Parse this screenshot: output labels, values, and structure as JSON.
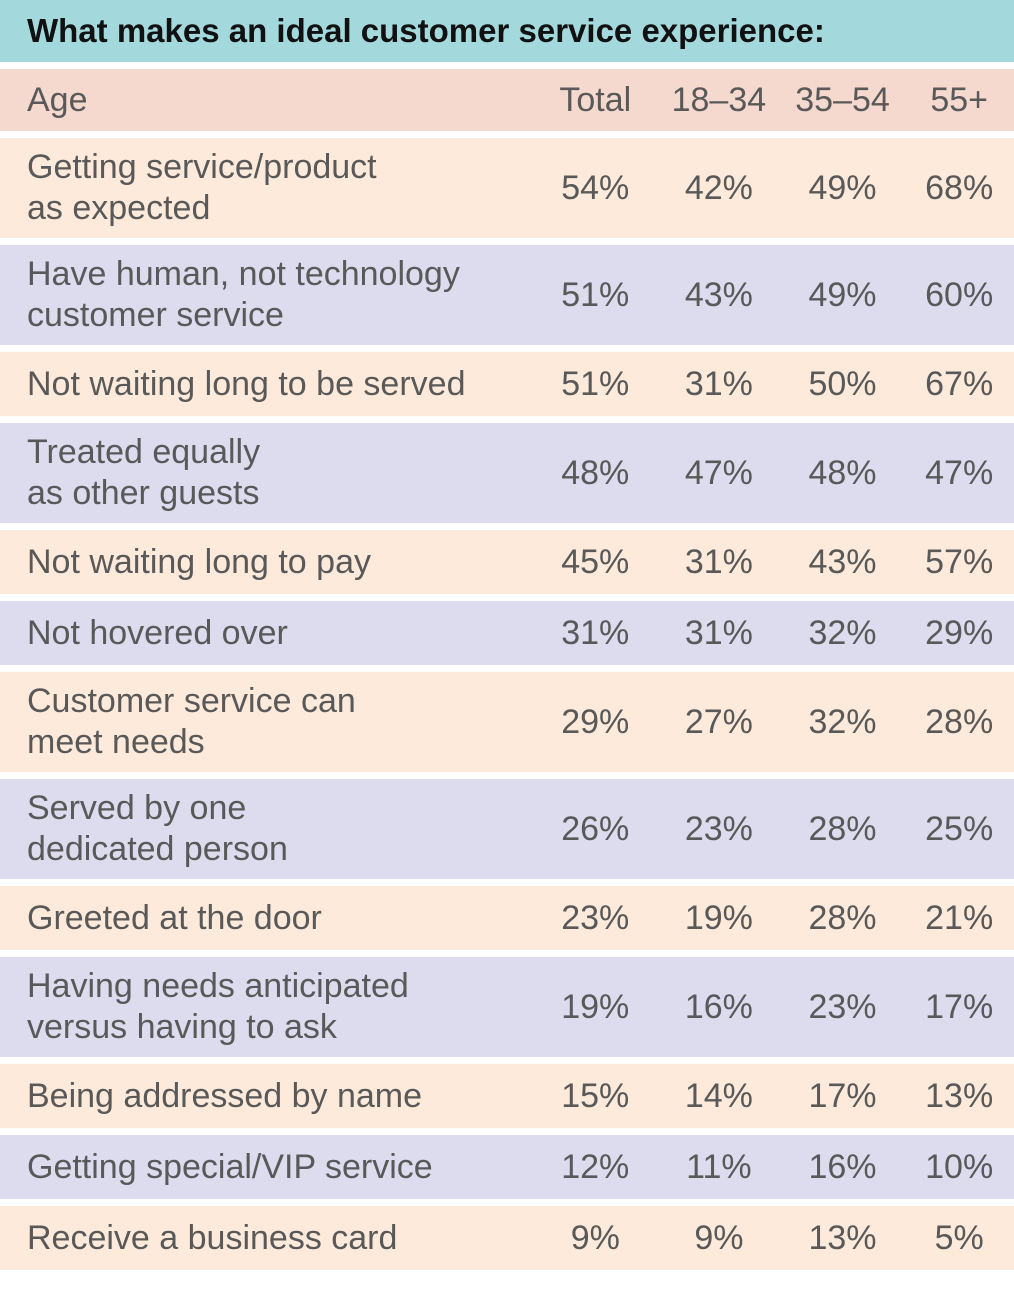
{
  "chart_data": {
    "type": "table",
    "title": "What makes an ideal customer service experience:",
    "header": [
      "Age",
      "Total",
      "18–34",
      "35–54",
      "55+"
    ],
    "rows": [
      {
        "label": [
          "Getting service/product",
          "as expected"
        ],
        "values": [
          "54%",
          "42%",
          "49%",
          "68%"
        ]
      },
      {
        "label": [
          "Have human, not technology",
          "customer service"
        ],
        "values": [
          "51%",
          "43%",
          "49%",
          "60%"
        ]
      },
      {
        "label": [
          "Not waiting long to be served"
        ],
        "values": [
          "51%",
          "31%",
          "50%",
          "67%"
        ]
      },
      {
        "label": [
          "Treated equally",
          "as other guests"
        ],
        "values": [
          "48%",
          "47%",
          "48%",
          "47%"
        ]
      },
      {
        "label": [
          "Not waiting long to pay"
        ],
        "values": [
          "45%",
          "31%",
          "43%",
          "57%"
        ]
      },
      {
        "label": [
          "Not hovered over"
        ],
        "values": [
          "31%",
          "31%",
          "32%",
          "29%"
        ]
      },
      {
        "label": [
          "Customer service can",
          "meet needs"
        ],
        "values": [
          "29%",
          "27%",
          "32%",
          "28%"
        ]
      },
      {
        "label": [
          "Served by one",
          "dedicated person"
        ],
        "values": [
          "26%",
          "23%",
          "28%",
          "25%"
        ]
      },
      {
        "label": [
          "Greeted at the door"
        ],
        "values": [
          "23%",
          "19%",
          "28%",
          "21%"
        ]
      },
      {
        "label": [
          "Having needs anticipated",
          "versus having to ask"
        ],
        "values": [
          "19%",
          "16%",
          "23%",
          "17%"
        ]
      },
      {
        "label": [
          "Being addressed by name"
        ],
        "values": [
          "15%",
          "14%",
          "17%",
          "13%"
        ]
      },
      {
        "label": [
          "Getting special/VIP service"
        ],
        "values": [
          "12%",
          "11%",
          "16%",
          "10%"
        ]
      },
      {
        "label": [
          "Receive a business card"
        ],
        "values": [
          "9%",
          "9%",
          "13%",
          "5%"
        ]
      }
    ],
    "colors": {
      "title_bg": "#a3d9dc",
      "header_bg": "#f5d9cf",
      "row_odd": "#fdeadb",
      "row_even": "#dddcef",
      "text": "#595959"
    }
  }
}
